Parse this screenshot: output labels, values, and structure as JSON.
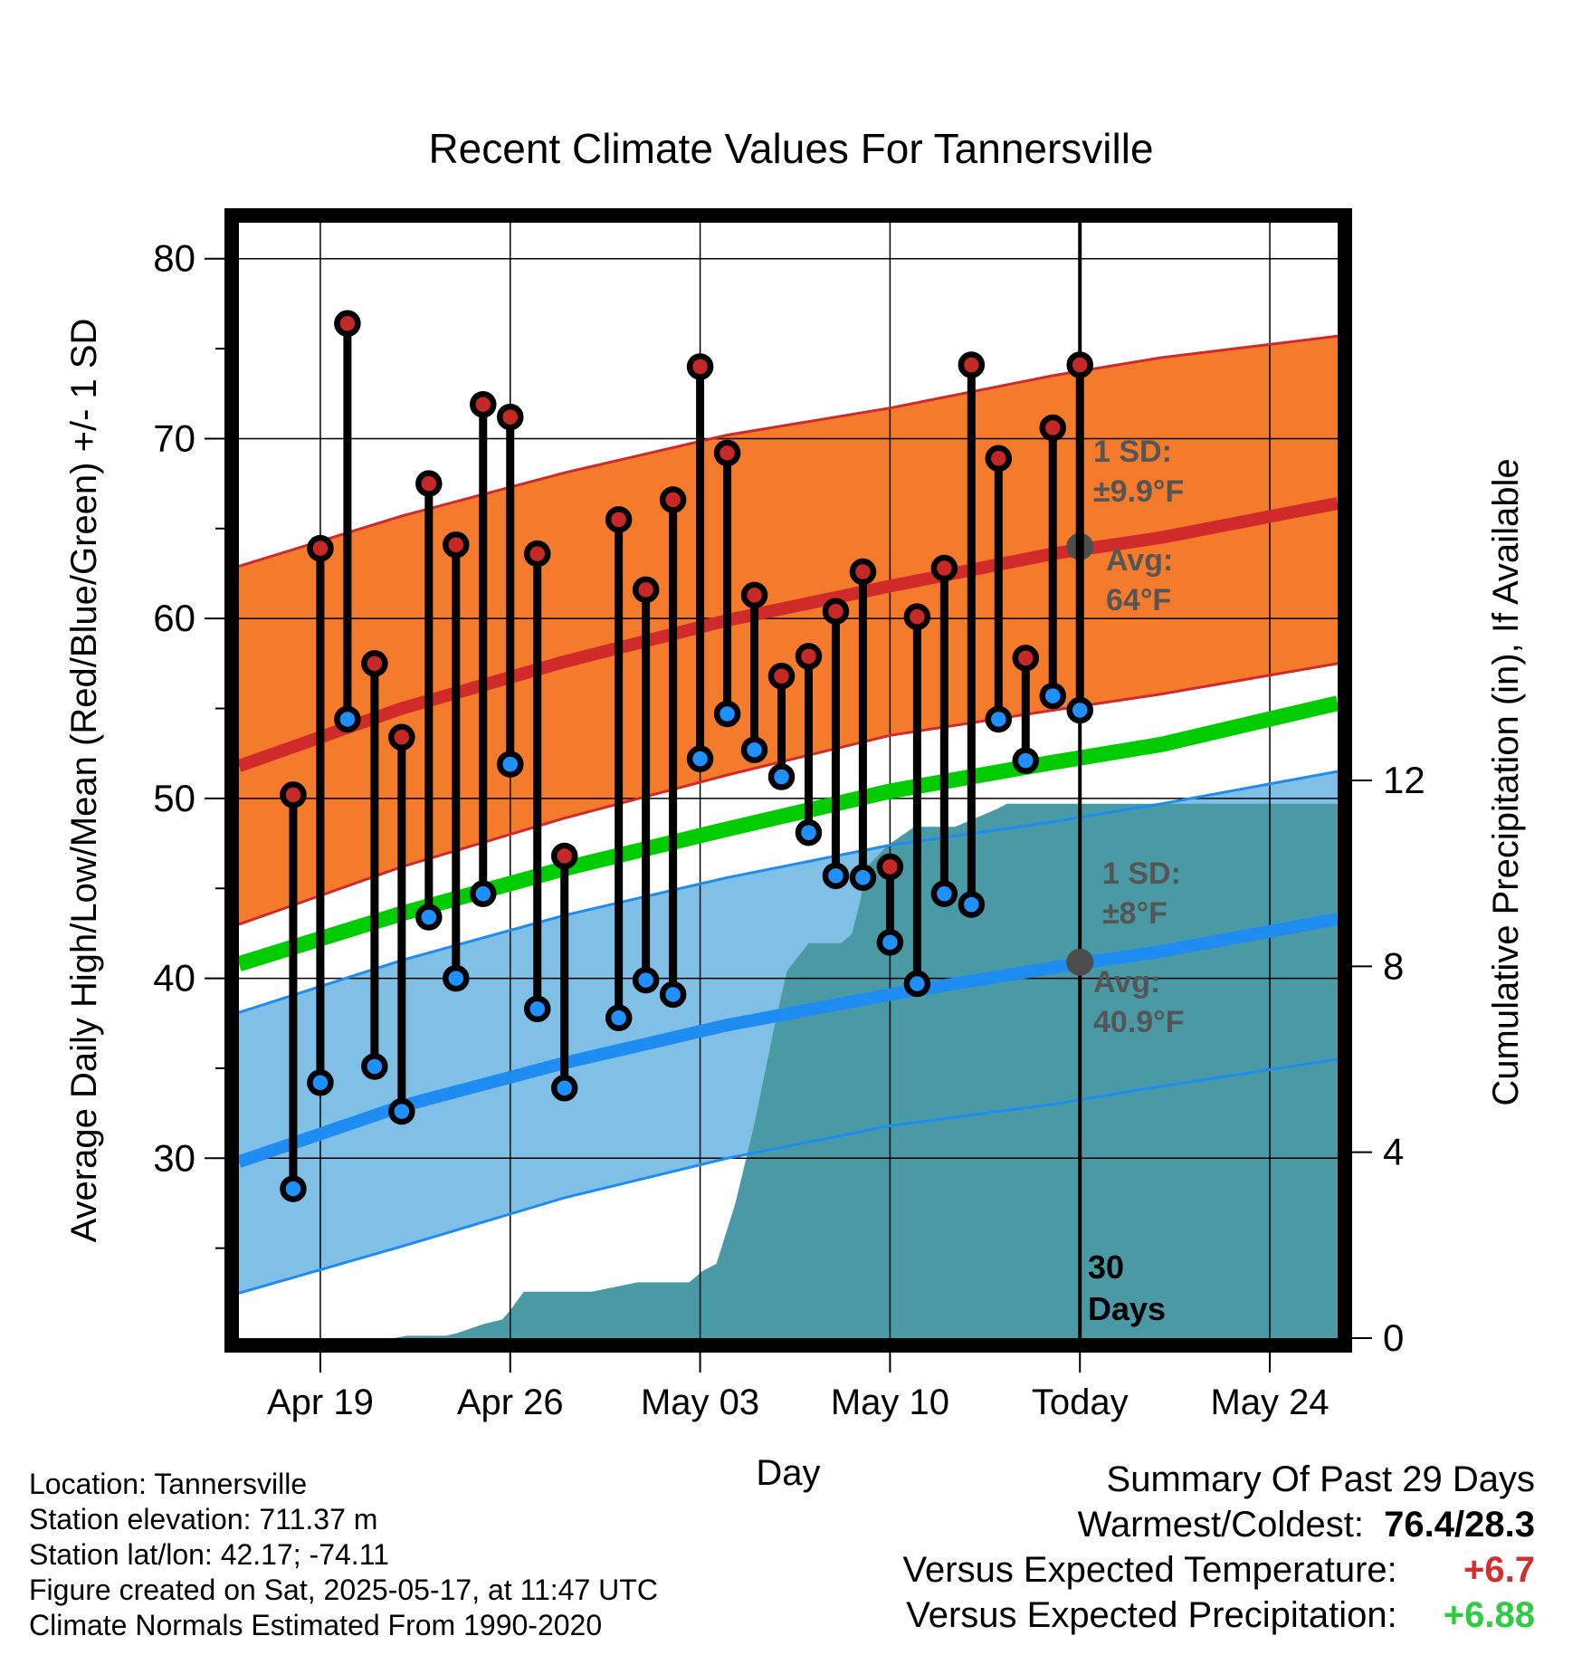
{
  "chart_data": {
    "type": "line",
    "title": "Recent Climate Values For Tannersville",
    "xlabel": "Day",
    "ylabel": "Average Daily High/Low/Mean (Red/Blue/Green) +/- 1 SD",
    "y2label": "Cumulative Precipitation (in), If Available",
    "x_ticks": [
      "Apr 19",
      "Apr 26",
      "May 03",
      "May 10",
      "Today",
      "May 24"
    ],
    "x_tick_days": [
      -28,
      -21,
      -14,
      -7,
      0,
      7
    ],
    "x_range_days": [
      -31,
      9.5
    ],
    "ylim": [
      20,
      82
    ],
    "y_ticks": [
      30,
      40,
      50,
      60,
      70,
      80
    ],
    "y2lim": [
      0,
      24
    ],
    "y2_ticks": [
      0,
      4,
      8,
      12
    ],
    "grid": true,
    "today_marker_label": "30\nDays",
    "normals": {
      "days": [
        -31,
        -25,
        -19,
        -13,
        -7,
        -1,
        3,
        9.5
      ],
      "high_mean": [
        51.8,
        55.0,
        57.6,
        59.9,
        61.8,
        63.6,
        64.5,
        66.4
      ],
      "high_upper": [
        62.9,
        65.7,
        68.1,
        70.2,
        71.7,
        73.5,
        74.5,
        75.7
      ],
      "high_lower": [
        43.0,
        46.2,
        48.9,
        51.3,
        53.5,
        54.9,
        55.8,
        57.5
      ],
      "mean_temp": [
        40.8,
        43.6,
        46.1,
        48.3,
        50.4,
        52.0,
        53.0,
        55.3
      ],
      "low_mean": [
        29.8,
        32.9,
        35.3,
        37.4,
        39.1,
        40.6,
        41.5,
        43.3
      ],
      "low_upper": [
        38.1,
        41.0,
        43.5,
        45.6,
        47.4,
        48.7,
        49.7,
        51.5
      ],
      "low_lower": [
        22.5,
        25.1,
        27.8,
        30.0,
        31.8,
        33.0,
        34.0,
        35.5
      ]
    },
    "high_sd_label": "1 SD:\n±9.9°F",
    "high_avg_label": "Avg:\n64°F",
    "high_avg_value": 64,
    "low_sd_label": "1 SD:\n±8°F",
    "low_avg_label": "Avg:\n40.9°F",
    "low_avg_value": 40.9,
    "series": [
      {
        "name": "High",
        "color": "#c62828",
        "days": [
          -29,
          -28,
          -27,
          -26,
          -25,
          -24,
          -23,
          -22,
          -21,
          -20,
          -19,
          -17,
          -16,
          -15,
          -14,
          -13,
          -12,
          -11,
          -10,
          -9,
          -8,
          -7,
          -6,
          -5,
          -4,
          -3,
          -2
        ],
        "values": [
          50.2,
          63.9,
          76.4,
          57.5,
          53.4,
          67.5,
          64.1,
          71.9,
          71.2,
          63.6,
          46.8,
          65.5,
          61.6,
          66.6,
          74.0,
          69.2,
          61.3,
          56.8,
          57.9,
          60.4,
          62.6,
          46.2,
          60.1,
          62.8,
          74.1,
          68.9,
          57.8
        ]
      },
      {
        "name": "Low",
        "color": "#1e90ff",
        "days": [
          -29,
          -28,
          -27,
          -26,
          -25,
          -24,
          -23,
          -22,
          -21,
          -20,
          -19,
          -17,
          -16,
          -15,
          -14,
          -13,
          -12,
          -11,
          -10,
          -9,
          -8,
          -7,
          -6,
          -5,
          -4,
          -3,
          -2
        ],
        "values": [
          28.3,
          34.2,
          54.4,
          35.1,
          32.6,
          43.4,
          40.0,
          44.7,
          51.9,
          38.3,
          33.9,
          37.8,
          39.9,
          39.1,
          52.2,
          54.7,
          52.7,
          51.2,
          48.1,
          45.7,
          45.6,
          42.0,
          39.7,
          44.7,
          44.1,
          54.4,
          52.1
        ]
      },
      {
        "name": "High2",
        "color": "#c62828",
        "days": [
          -1,
          0
        ],
        "values": [
          70.6,
          74.1
        ]
      },
      {
        "name": "Low2",
        "color": "#1e90ff",
        "days": [
          -1,
          0
        ],
        "values": [
          55.7,
          54.9
        ]
      }
    ],
    "precipitation": {
      "days": [
        -31,
        -25.3,
        -24.8,
        -23.4,
        -23,
        -22,
        -21.3,
        -21,
        -20.5,
        -19,
        -18,
        -16.3,
        -15.5,
        -14.4,
        -14.1,
        -13.9,
        -13.4,
        -12.7,
        -12,
        -11.3,
        -10.8,
        -10,
        -9.6,
        -8.8,
        -8.4,
        -8.1,
        -7.9,
        -7.1,
        -6.1,
        -5.2,
        -4.6,
        -3,
        -2.7,
        0,
        9.5
      ],
      "values": [
        0,
        0,
        0.05,
        0.05,
        0.1,
        0.3,
        0.4,
        0.6,
        1.0,
        1.0,
        1.0,
        1.2,
        1.2,
        1.2,
        1.35,
        1.45,
        1.6,
        2.9,
        4.6,
        6.6,
        7.9,
        8.5,
        8.5,
        8.5,
        8.7,
        9.4,
        10.1,
        10.6,
        11.0,
        11.0,
        11.0,
        11.4,
        11.5,
        11.5,
        11.5
      ]
    }
  },
  "footer": {
    "location": "Location: Tannersville",
    "elevation": "Station elevation: 711.37 m",
    "latlon": "Station lat/lon: 42.17; -74.11",
    "created": "Figure created on Sat, 2025-05-17, at 11:47 UTC",
    "normals": "Climate Normals Estimated From 1990-2020"
  },
  "summary": {
    "heading": "Summary Of Past 29 Days",
    "warm_cold_label": "Warmest/Coldest:",
    "warm_cold_value": "76.4/28.3",
    "temp_label": "Versus Expected Temperature:",
    "temp_value": "+6.7",
    "precip_label": "Versus Expected Precipitation:",
    "precip_value": "+6.88",
    "temp_color": "#d32f2f",
    "precip_color": "#2ecc40"
  },
  "colors": {
    "high_band": "#f47a2c",
    "high_line": "#d12a2a",
    "low_band": "#80bfe6",
    "low_line": "#1e8cf0",
    "mean_line": "#00cc00",
    "precip_fill": "#4a9aa5",
    "annotation_text": "#555555"
  }
}
